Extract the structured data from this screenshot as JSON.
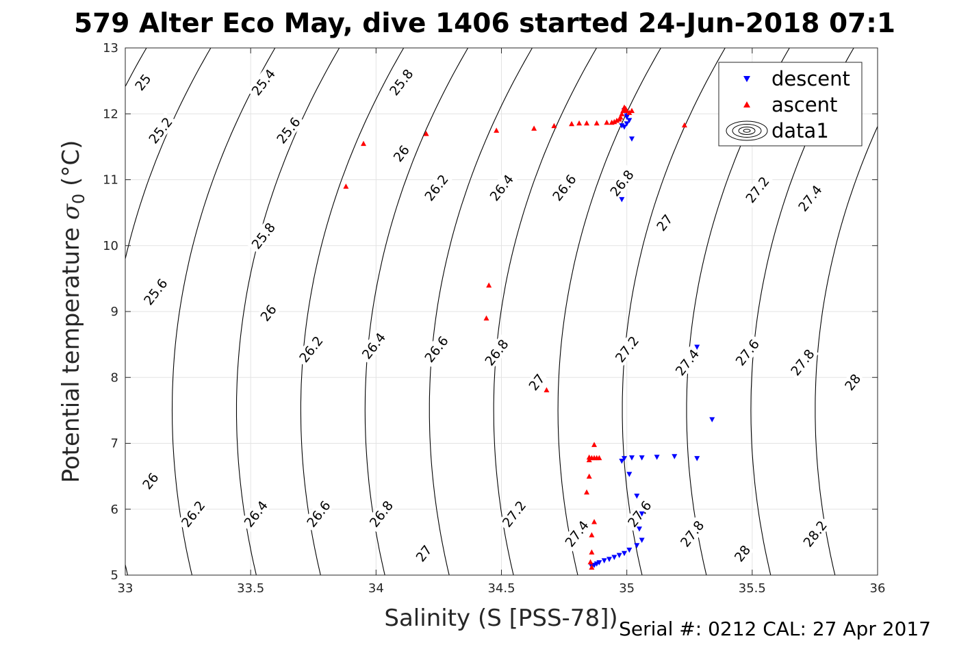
{
  "chart_data": {
    "type": "scatter",
    "title": "579 Alter Eco May, dive 1406 started 24-Jun-2018 07:1",
    "xlabel": "Salinity (S [PSS-78])",
    "ylabel_main": "Potential temperature ",
    "ylabel_sigma": "σ",
    "ylabel_sub": "0",
    "ylabel_unit": " (°C)",
    "footer": "Serial #: 0212  CAL: 27 Apr 2017",
    "xlim": [
      33,
      36
    ],
    "ylim": [
      5,
      13
    ],
    "xticks": [
      33,
      33.5,
      34,
      34.5,
      35,
      35.5,
      36
    ],
    "xtick_labels": [
      "33",
      "33.5",
      "34",
      "34.5",
      "35",
      "35.5",
      "36"
    ],
    "yticks": [
      5,
      6,
      7,
      8,
      9,
      10,
      11,
      12,
      13
    ],
    "ytick_labels": [
      "5",
      "6",
      "7",
      "8",
      "9",
      "10",
      "11",
      "12",
      "13"
    ],
    "grid": true,
    "legend": {
      "placement": "top-right",
      "entries": [
        {
          "label": "descent",
          "marker": "down-triangle",
          "color": "#0000ff"
        },
        {
          "label": "ascent",
          "marker": "up-triangle",
          "color": "#ff0000"
        },
        {
          "label": "data1",
          "marker": "contour",
          "color": "#000000"
        }
      ]
    },
    "contour_levels": [
      25,
      25.2,
      25.4,
      25.6,
      25.8,
      26,
      26.2,
      26.4,
      26.6,
      26.8,
      27,
      27.2,
      27.4,
      27.6,
      27.8,
      28,
      28.2
    ],
    "contour_labels": [
      {
        "text": "25",
        "s": 33.07,
        "t": 12.48
      },
      {
        "text": "25.4",
        "s": 33.55,
        "t": 12.48
      },
      {
        "text": "25.8",
        "s": 34.1,
        "t": 12.48
      },
      {
        "text": "25.2",
        "s": 33.14,
        "t": 11.75
      },
      {
        "text": "25.6",
        "s": 33.65,
        "t": 11.75
      },
      {
        "text": "26",
        "s": 34.1,
        "t": 11.4
      },
      {
        "text": "26.2",
        "s": 34.24,
        "t": 10.88
      },
      {
        "text": "26.4",
        "s": 34.5,
        "t": 10.88
      },
      {
        "text": "26.6",
        "s": 34.75,
        "t": 10.88
      },
      {
        "text": "26.8",
        "s": 34.98,
        "t": 10.95
      },
      {
        "text": "27",
        "s": 35.15,
        "t": 10.35
      },
      {
        "text": "27.2",
        "s": 35.52,
        "t": 10.85
      },
      {
        "text": "27.4",
        "s": 35.73,
        "t": 10.72
      },
      {
        "text": "25.8",
        "s": 33.55,
        "t": 10.15
      },
      {
        "text": "25.6",
        "s": 33.12,
        "t": 9.3
      },
      {
        "text": "26",
        "s": 33.57,
        "t": 8.98
      },
      {
        "text": "26.2",
        "s": 33.74,
        "t": 8.43
      },
      {
        "text": "26.4",
        "s": 33.99,
        "t": 8.48
      },
      {
        "text": "26.6",
        "s": 34.24,
        "t": 8.43
      },
      {
        "text": "26.8",
        "s": 34.48,
        "t": 8.38
      },
      {
        "text": "27",
        "s": 34.64,
        "t": 7.93
      },
      {
        "text": "27.2",
        "s": 35.0,
        "t": 8.43
      },
      {
        "text": "27.4",
        "s": 35.24,
        "t": 8.23
      },
      {
        "text": "27.6",
        "s": 35.48,
        "t": 8.38
      },
      {
        "text": "27.8",
        "s": 35.7,
        "t": 8.23
      },
      {
        "text": "28",
        "s": 35.9,
        "t": 7.93
      },
      {
        "text": "26",
        "s": 33.1,
        "t": 6.43
      },
      {
        "text": "26.2",
        "s": 33.27,
        "t": 5.93
      },
      {
        "text": "26.4",
        "s": 33.52,
        "t": 5.93
      },
      {
        "text": "26.6",
        "s": 33.77,
        "t": 5.93
      },
      {
        "text": "26.8",
        "s": 34.02,
        "t": 5.93
      },
      {
        "text": "27",
        "s": 34.19,
        "t": 5.33
      },
      {
        "text": "27.2",
        "s": 34.55,
        "t": 5.93
      },
      {
        "text": "27.4",
        "s": 34.8,
        "t": 5.63
      },
      {
        "text": "27.6",
        "s": 35.05,
        "t": 5.93
      },
      {
        "text": "27.8",
        "s": 35.26,
        "t": 5.63
      },
      {
        "text": "28",
        "s": 35.46,
        "t": 5.33
      },
      {
        "text": "28.2",
        "s": 35.75,
        "t": 5.63
      }
    ],
    "series": [
      {
        "name": "descent",
        "marker": "down-triangle",
        "color": "#0000ff",
        "x": [
          34.99,
          35.0,
          35.01,
          35.0,
          34.99,
          34.98,
          35.0,
          35.02,
          34.98,
          35.28,
          35.34,
          34.98,
          34.99,
          35.02,
          35.06,
          35.12,
          35.19,
          35.28,
          35.01,
          35.04,
          35.06,
          35.05,
          35.06,
          35.04,
          35.01,
          34.99,
          34.97,
          34.95,
          34.93,
          34.91,
          34.89,
          34.88,
          34.87,
          34.86,
          34.86
        ],
        "y": [
          12.05,
          11.95,
          11.9,
          11.85,
          11.8,
          11.82,
          11.97,
          11.62,
          10.7,
          8.46,
          7.36,
          6.73,
          6.77,
          6.78,
          6.78,
          6.79,
          6.8,
          6.77,
          6.53,
          6.2,
          5.93,
          5.7,
          5.53,
          5.45,
          5.38,
          5.33,
          5.3,
          5.27,
          5.24,
          5.22,
          5.19,
          5.17,
          5.15,
          5.14,
          5.13
        ]
      },
      {
        "name": "ascent",
        "marker": "up-triangle",
        "color": "#ff0000",
        "x": [
          33.88,
          33.95,
          34.2,
          34.48,
          34.63,
          34.71,
          34.78,
          34.81,
          34.84,
          34.88,
          34.92,
          34.94,
          34.95,
          34.96,
          34.97,
          34.975,
          34.98,
          34.985,
          34.99,
          34.995,
          35.0,
          35.01,
          35.02,
          35.23,
          34.45,
          34.44,
          34.68,
          34.87,
          34.86,
          34.87,
          34.88,
          34.89,
          34.85,
          34.85,
          34.85,
          34.84,
          34.87,
          34.86,
          34.86,
          34.855,
          34.86
        ],
        "y": [
          10.9,
          11.55,
          11.7,
          11.75,
          11.78,
          11.82,
          11.85,
          11.86,
          11.86,
          11.86,
          11.87,
          11.87,
          11.88,
          11.9,
          11.92,
          11.95,
          12.0,
          12.05,
          12.1,
          12.08,
          12.05,
          12.02,
          12.05,
          11.83,
          9.4,
          8.9,
          7.81,
          6.98,
          6.78,
          6.78,
          6.78,
          6.78,
          6.79,
          6.75,
          6.5,
          6.26,
          5.81,
          5.61,
          5.35,
          5.2,
          5.12
        ]
      }
    ]
  }
}
